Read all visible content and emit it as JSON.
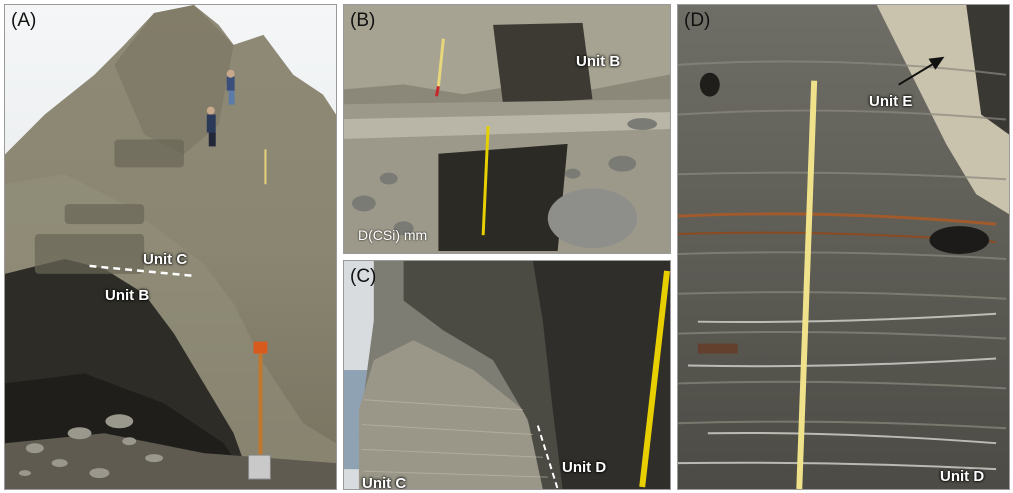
{
  "panels": [
    {
      "id": "A",
      "label": "(A)",
      "units": [
        "Unit C",
        "Unit B"
      ]
    },
    {
      "id": "B",
      "label": "(B)",
      "units": [
        "Unit B"
      ],
      "scale_label": "D(CSi) mm"
    },
    {
      "id": "C",
      "label": "(C)",
      "units": [
        "Unit C",
        "Unit D"
      ]
    },
    {
      "id": "D",
      "label": "(D)",
      "units": [
        "Unit E",
        "Unit D"
      ]
    }
  ]
}
